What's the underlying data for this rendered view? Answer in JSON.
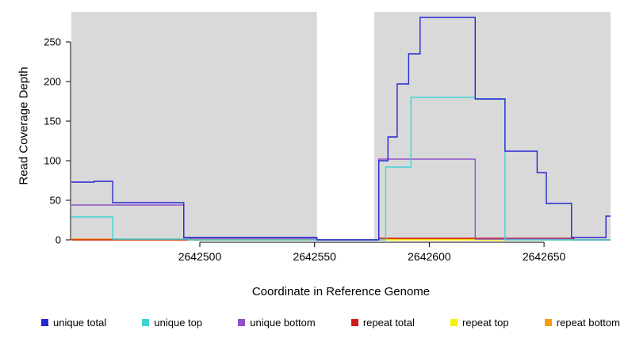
{
  "chart_data": {
    "type": "line",
    "step": true,
    "title": "",
    "xlabel": "Coordinate in Reference Genome",
    "ylabel": "Read Coverage Depth",
    "xlim": [
      2642444,
      2642679
    ],
    "ylim": [
      0,
      288
    ],
    "xticks": [
      2642500,
      2642550,
      2642600,
      2642650
    ],
    "yticks": [
      0,
      50,
      100,
      150,
      200,
      250
    ],
    "grid": false,
    "legend_position": "bottom",
    "axis_color": "#000000",
    "panel_color": "#ffffff",
    "shaded_regions": [
      {
        "x0": 2642444,
        "x1": 2642551,
        "color": "#d9d9d9"
      },
      {
        "x0": 2642576,
        "x1": 2642679,
        "color": "#d9d9d9"
      }
    ],
    "series": [
      {
        "name": "unique total",
        "color": "#2727d3",
        "points": [
          [
            2642444,
            73
          ],
          [
            2642454,
            74
          ],
          [
            2642462,
            47
          ],
          [
            2642493,
            3
          ],
          [
            2642551,
            0
          ],
          [
            2642578,
            100
          ],
          [
            2642582,
            130
          ],
          [
            2642586,
            197
          ],
          [
            2642591,
            235
          ],
          [
            2642596,
            281
          ],
          [
            2642620,
            178
          ],
          [
            2642633,
            112
          ],
          [
            2642647,
            85
          ],
          [
            2642651,
            46
          ],
          [
            2642662,
            3
          ],
          [
            2642677,
            30
          ],
          [
            2642679,
            30
          ]
        ]
      },
      {
        "name": "unique top",
        "color": "#3fd4d4",
        "points": [
          [
            2642444,
            29
          ],
          [
            2642462,
            1
          ],
          [
            2642495,
            0
          ],
          [
            2642581,
            92
          ],
          [
            2642592,
            180
          ],
          [
            2642620,
            178
          ],
          [
            2642633,
            0
          ],
          [
            2642679,
            0
          ]
        ]
      },
      {
        "name": "unique bottom",
        "color": "#9050cc",
        "points": [
          [
            2642444,
            44
          ],
          [
            2642493,
            2
          ],
          [
            2642551,
            0
          ],
          [
            2642578,
            102
          ],
          [
            2642620,
            1
          ],
          [
            2642662,
            0
          ],
          [
            2642679,
            0
          ]
        ]
      },
      {
        "name": "repeat total",
        "color": "#cf1a1a",
        "points": [
          [
            2642444,
            0
          ],
          [
            2642578,
            2
          ],
          [
            2642663,
            0
          ],
          [
            2642679,
            0
          ]
        ]
      },
      {
        "name": "repeat top",
        "color": "#f5ef0f",
        "points": [
          [
            2642444,
            0
          ],
          [
            2642679,
            0
          ]
        ]
      },
      {
        "name": "repeat bottom",
        "color": "#f59d0a",
        "points": [
          [
            2642444,
            1
          ],
          [
            2642497,
            0
          ],
          [
            2642580,
            1
          ],
          [
            2642620,
            0
          ],
          [
            2642679,
            0
          ]
        ]
      }
    ]
  }
}
